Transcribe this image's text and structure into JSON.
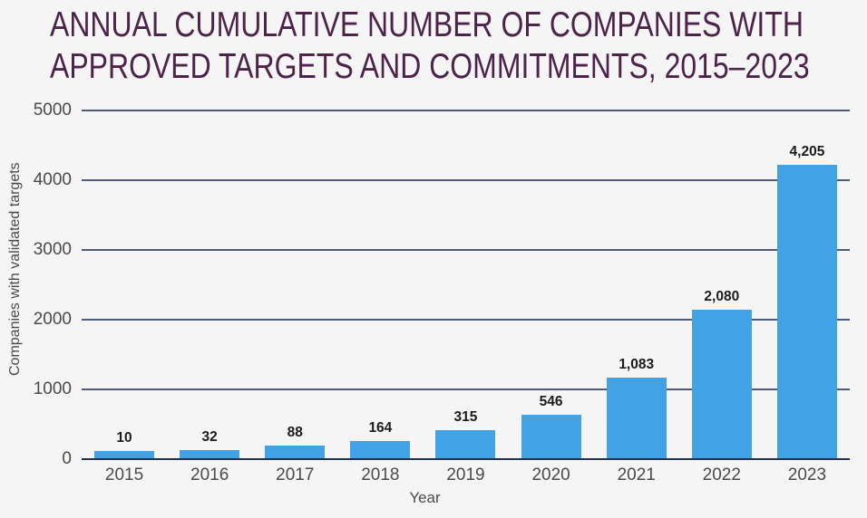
{
  "title": {
    "line1": "ANNUAL CUMULATIVE NUMBER OF COMPANIES WITH",
    "line2": "APPROVED TARGETS AND COMMITMENTS, 2015–2023"
  },
  "chart_data": {
    "type": "bar",
    "title": "Annual cumulative number of companies with approved targets and commitments, 2015–2023",
    "categories": [
      "2015",
      "2016",
      "2017",
      "2018",
      "2019",
      "2020",
      "2021",
      "2022",
      "2023"
    ],
    "values": [
      10,
      32,
      88,
      164,
      315,
      546,
      1083,
      2080,
      4205
    ],
    "value_labels": [
      "10",
      "32",
      "88",
      "164",
      "315",
      "546",
      "1,083",
      "2,080",
      "4,205"
    ],
    "xlabel": "Year",
    "ylabel": "Companies with validated targets",
    "ylim": [
      0,
      5000
    ],
    "y_ticks": [
      5000,
      4000,
      3000,
      2000,
      1000,
      0
    ],
    "grid": "horizontal",
    "legend": "none"
  },
  "colors": {
    "background": "#f5f5f6",
    "title": "#4d2349",
    "bar": "#41a2e5",
    "gridline": "#4e5a78",
    "axis_line": "#233150",
    "tick_label": "#4a4a4a",
    "value_label": "#1b1b1b"
  }
}
